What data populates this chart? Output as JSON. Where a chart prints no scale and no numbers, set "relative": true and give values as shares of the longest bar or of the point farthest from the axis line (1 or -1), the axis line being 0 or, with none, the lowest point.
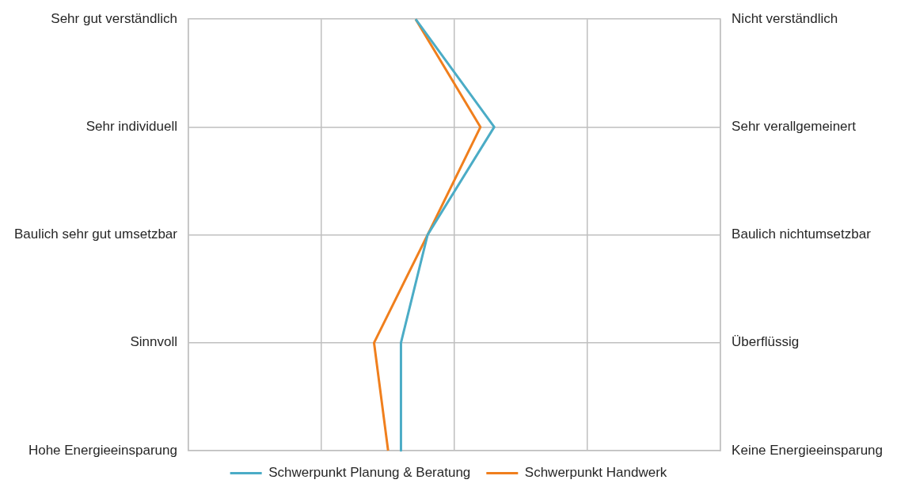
{
  "chart_data": {
    "type": "line",
    "relative": true,
    "orientation": "horizontal",
    "categories": [
      "Sehr gut verständlich",
      "Sehr individuell",
      "Baulich sehr gut umsetzbar",
      "Sinnvoll",
      "Hohe Energieeinsparung"
    ],
    "y2_categories": [
      "Nicht verständlich",
      "Sehr verallgemeinert",
      "Baulich nichtumsetzbar",
      "Überflüssig",
      "Keine Energieeinsparung"
    ],
    "series": [
      {
        "name": "Schwerpunkt Planung & Beratung",
        "color": "#4bacc6",
        "values": [
          0.743,
          1,
          0.782,
          0.695,
          0.695
        ]
      },
      {
        "name": "Schwerpunkt Handwerk",
        "color": "#f07f1d",
        "values": [
          0.743,
          0.955,
          0.782,
          0.607,
          0.653
        ]
      }
    ],
    "grid": true,
    "legend": "bottom"
  }
}
